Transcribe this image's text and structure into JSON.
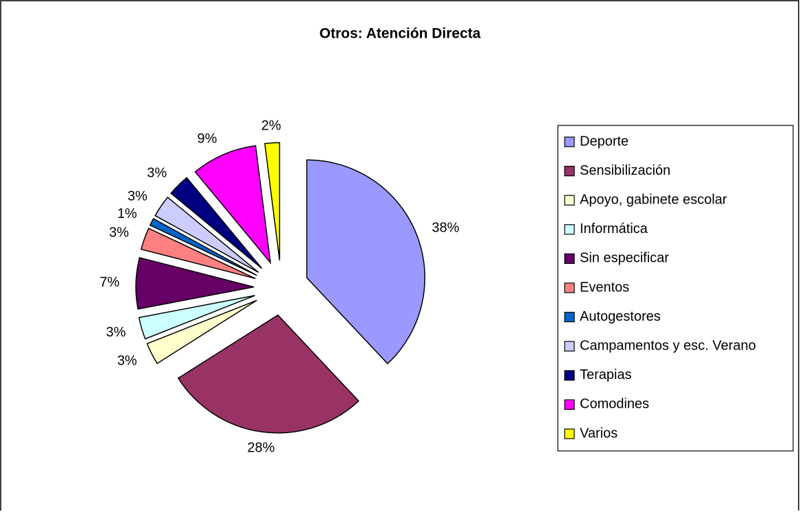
{
  "chart_data": {
    "type": "pie",
    "title": "Otros: Atención Directa",
    "categories": [
      "Deporte",
      "Sensibilización",
      "Apoyo, gabinete escolar",
      "Informática",
      "Sin especificar",
      "Eventos",
      "Autogestores",
      "Campamentos y esc. Verano",
      "Terapias",
      "Comodines",
      "Varios"
    ],
    "values": [
      38,
      28,
      3,
      3,
      7,
      3,
      1,
      3,
      3,
      9,
      2
    ],
    "value_labels": [
      "38%",
      "28%",
      "3%",
      "3%",
      "7%",
      "3%",
      "1%",
      "3%",
      "3%",
      "9%",
      "2%"
    ],
    "colors": [
      "#9999ff",
      "#993366",
      "#ffffcc",
      "#ccffff",
      "#660066",
      "#ff8080",
      "#0066cc",
      "#ccccff",
      "#000080",
      "#ff00ff",
      "#ffff00"
    ],
    "legend": "right"
  }
}
